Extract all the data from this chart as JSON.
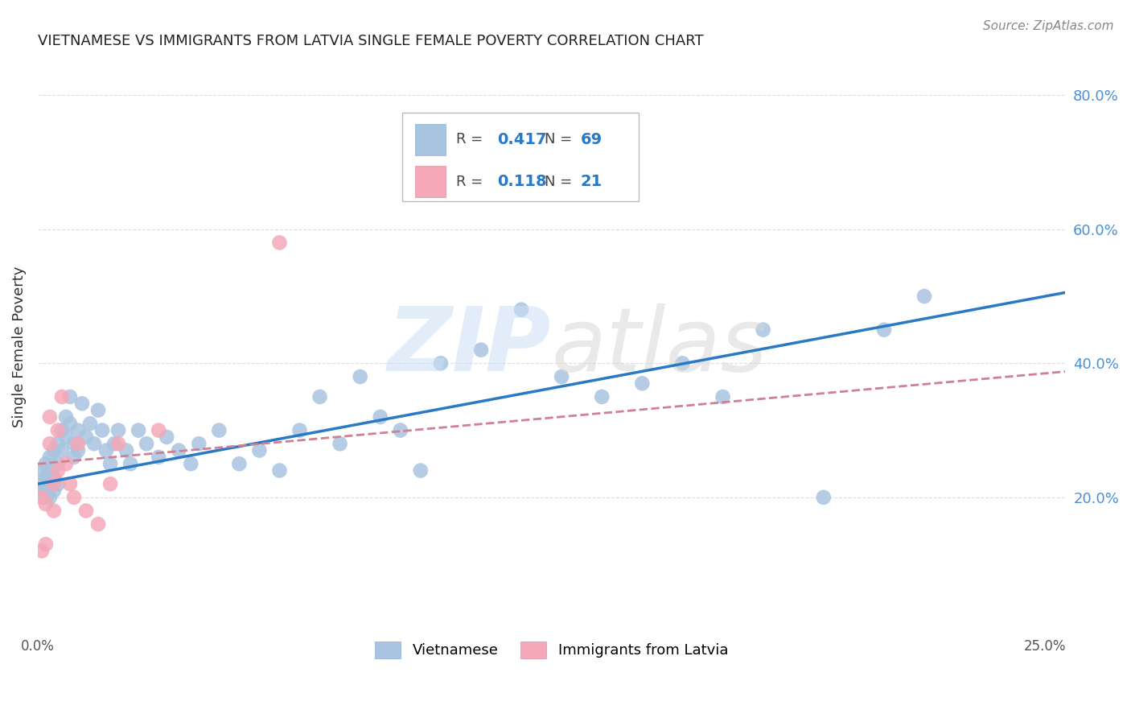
{
  "title": "VIETNAMESE VS IMMIGRANTS FROM LATVIA SINGLE FEMALE POVERTY CORRELATION CHART",
  "source": "Source: ZipAtlas.com",
  "ylabel": "Single Female Poverty",
  "xlim": [
    0.0,
    0.255
  ],
  "ylim": [
    0.0,
    0.85
  ],
  "xticks": [
    0.0,
    0.05,
    0.1,
    0.15,
    0.2,
    0.25
  ],
  "xticklabels": [
    "0.0%",
    "",
    "",
    "",
    "",
    "25.0%"
  ],
  "yticks_right": [
    0.2,
    0.4,
    0.6,
    0.8
  ],
  "ytick_labels_right": [
    "20.0%",
    "40.0%",
    "60.0%",
    "80.0%"
  ],
  "vietnamese_color": "#a8c4e0",
  "latvia_color": "#f4a8b8",
  "line_vietnamese_color": "#2979c5",
  "line_latvia_color": "#d08090",
  "background_color": "#ffffff",
  "grid_color": "#dddddd",
  "vietnamese_x": [
    0.001,
    0.001,
    0.001,
    0.002,
    0.002,
    0.002,
    0.002,
    0.003,
    0.003,
    0.003,
    0.003,
    0.004,
    0.004,
    0.004,
    0.005,
    0.005,
    0.005,
    0.006,
    0.006,
    0.007,
    0.007,
    0.008,
    0.008,
    0.009,
    0.009,
    0.01,
    0.01,
    0.011,
    0.012,
    0.013,
    0.014,
    0.015,
    0.016,
    0.017,
    0.018,
    0.019,
    0.02,
    0.022,
    0.023,
    0.025,
    0.027,
    0.03,
    0.032,
    0.035,
    0.038,
    0.04,
    0.045,
    0.05,
    0.055,
    0.06,
    0.065,
    0.07,
    0.075,
    0.08,
    0.085,
    0.09,
    0.095,
    0.1,
    0.11,
    0.12,
    0.13,
    0.14,
    0.15,
    0.16,
    0.17,
    0.18,
    0.195,
    0.21,
    0.22
  ],
  "vietnamese_y": [
    0.22,
    0.24,
    0.21,
    0.23,
    0.2,
    0.25,
    0.21,
    0.24,
    0.22,
    0.26,
    0.2,
    0.27,
    0.23,
    0.21,
    0.28,
    0.25,
    0.22,
    0.3,
    0.27,
    0.32,
    0.29,
    0.35,
    0.31,
    0.28,
    0.26,
    0.3,
    0.27,
    0.34,
    0.29,
    0.31,
    0.28,
    0.33,
    0.3,
    0.27,
    0.25,
    0.28,
    0.3,
    0.27,
    0.25,
    0.3,
    0.28,
    0.26,
    0.29,
    0.27,
    0.25,
    0.28,
    0.3,
    0.25,
    0.27,
    0.24,
    0.3,
    0.35,
    0.28,
    0.38,
    0.32,
    0.3,
    0.24,
    0.4,
    0.42,
    0.48,
    0.38,
    0.35,
    0.37,
    0.4,
    0.35,
    0.45,
    0.2,
    0.45,
    0.5
  ],
  "latvia_x": [
    0.001,
    0.001,
    0.002,
    0.002,
    0.003,
    0.003,
    0.004,
    0.004,
    0.005,
    0.005,
    0.006,
    0.007,
    0.008,
    0.009,
    0.01,
    0.012,
    0.015,
    0.018,
    0.02,
    0.03,
    0.06
  ],
  "latvia_y": [
    0.2,
    0.12,
    0.19,
    0.13,
    0.32,
    0.28,
    0.22,
    0.18,
    0.3,
    0.24,
    0.35,
    0.25,
    0.22,
    0.2,
    0.28,
    0.18,
    0.16,
    0.22,
    0.28,
    0.3,
    0.58
  ],
  "legend_R1": "0.417",
  "legend_N1": "69",
  "legend_R2": "0.118",
  "legend_N2": "21"
}
